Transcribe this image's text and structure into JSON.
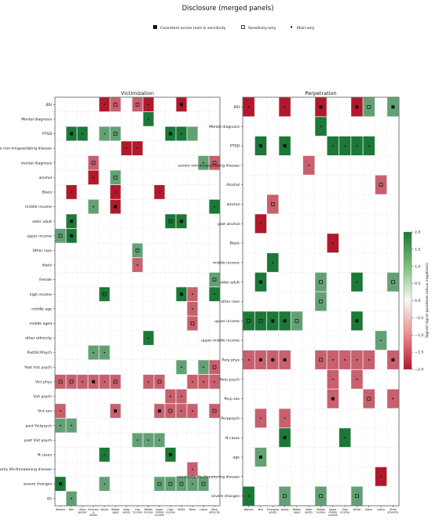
{
  "figure": {
    "title": "Disclosure (merged panels)",
    "legend": {
      "placement": "top-center",
      "items": [
        {
          "marker": "filled-square",
          "label": "Consistent across main & sensitivity"
        },
        {
          "marker": "open-square",
          "label": "Sensitivity-only"
        },
        {
          "marker": "dot",
          "label": "Main-only"
        }
      ]
    },
    "colorbar": {
      "label": "Signed signal (positives minus negatives)",
      "ticks": [
        "2.0",
        "1.5",
        "1.0",
        "0.5",
        "0.0",
        "−0.5",
        "−1.0",
        "−1.5",
        "−2.0"
      ],
      "range": [
        -2.0,
        2.0
      ],
      "colors": {
        "neg_strong": "#b2182b",
        "neutral": "#f7f7f7",
        "pos_strong": "#1b7837"
      }
    }
  },
  "chart_data": [
    {
      "type": "heatmap",
      "title": "Victimization",
      "xlim": [
        0,
        12
      ],
      "columns": [
        "Women",
        "Men",
        "Other gender",
        "Emergin g adults",
        "Adults",
        "Middle aged",
        "Older adults",
        "Low income",
        "Middle income",
        "Upper middle income",
        "High income",
        "White",
        "Black",
        "Latino",
        "Other ethnicity"
      ],
      "rows": [
        "BSI",
        "Mental diagnosis",
        "PTSD",
        "severe non-incapacitating disease",
        "mental diagnosis",
        "alcohol",
        "Black",
        "middle income",
        "older adult",
        "upper income",
        "Other race",
        "black",
        "female",
        "high income",
        "middle age",
        "middle aged",
        "other ethnicity",
        "PastVictPsych",
        "Past Vict psych",
        "Vict phys",
        "Vict psych",
        "Vict sex",
        "past Victpsych",
        "past Vict psych",
        "N cases",
        "constantly life-threatening disease",
        "severe changes",
        "65"
      ],
      "cells": [
        {
          "r": 0,
          "c": 4,
          "v": -2,
          "m": "dot"
        },
        {
          "r": 0,
          "c": 5,
          "v": -1,
          "m": "open"
        },
        {
          "r": 0,
          "c": 7,
          "v": -1,
          "m": "open"
        },
        {
          "r": 0,
          "c": 8,
          "v": -2,
          "m": "dot"
        },
        {
          "r": 0,
          "c": 11,
          "v": -2,
          "m": "filled"
        },
        {
          "r": 1,
          "c": 8,
          "v": 2,
          "m": "dot"
        },
        {
          "r": 2,
          "c": 1,
          "v": 2,
          "m": "filled"
        },
        {
          "r": 2,
          "c": 2,
          "v": 2,
          "m": "dot"
        },
        {
          "r": 2,
          "c": 4,
          "v": 1,
          "m": "dot"
        },
        {
          "r": 2,
          "c": 5,
          "v": 1,
          "m": "open"
        },
        {
          "r": 2,
          "c": 10,
          "v": 2,
          "m": "filled"
        },
        {
          "r": 2,
          "c": 11,
          "v": 2,
          "m": "dot"
        },
        {
          "r": 2,
          "c": 12,
          "v": 1,
          "m": "none"
        },
        {
          "r": 3,
          "c": 6,
          "v": -2,
          "m": "dot"
        },
        {
          "r": 3,
          "c": 7,
          "v": -2,
          "m": "dot"
        },
        {
          "r": 4,
          "c": 3,
          "v": -1,
          "m": "open"
        },
        {
          "r": 4,
          "c": 13,
          "v": 1,
          "m": "dot"
        },
        {
          "r": 4,
          "c": 14,
          "v": -1,
          "m": "open"
        },
        {
          "r": 5,
          "c": 3,
          "v": -2,
          "m": "dot"
        },
        {
          "r": 5,
          "c": 5,
          "v": 1,
          "m": "open"
        },
        {
          "r": 6,
          "c": 1,
          "v": -2,
          "m": "dot"
        },
        {
          "r": 6,
          "c": 5,
          "v": -2,
          "m": "dot"
        },
        {
          "r": 6,
          "c": 9,
          "v": -2,
          "m": "dot"
        },
        {
          "r": 7,
          "c": 3,
          "v": 1,
          "m": "dot"
        },
        {
          "r": 7,
          "c": 5,
          "v": -2,
          "m": "filled"
        },
        {
          "r": 7,
          "c": 14,
          "v": 2,
          "m": "dot"
        },
        {
          "r": 8,
          "c": 1,
          "v": 2,
          "m": "filled"
        },
        {
          "r": 8,
          "c": 10,
          "v": 2,
          "m": "open"
        },
        {
          "r": 8,
          "c": 11,
          "v": 2,
          "m": "filled"
        },
        {
          "r": 9,
          "c": 0,
          "v": 1,
          "m": "open"
        },
        {
          "r": 9,
          "c": 1,
          "v": 2,
          "m": "filled"
        },
        {
          "r": 10,
          "c": 7,
          "v": 1,
          "m": "open"
        },
        {
          "r": 11,
          "c": 7,
          "v": -1,
          "m": "dot"
        },
        {
          "r": 12,
          "c": 14,
          "v": 1,
          "m": "open"
        },
        {
          "r": 13,
          "c": 4,
          "v": 2,
          "m": "open"
        },
        {
          "r": 13,
          "c": 11,
          "v": 2,
          "m": "filled"
        },
        {
          "r": 13,
          "c": 12,
          "v": -1,
          "m": "dot"
        },
        {
          "r": 13,
          "c": 14,
          "v": 2,
          "m": "dot"
        },
        {
          "r": 14,
          "c": 12,
          "v": -1,
          "m": "dot"
        },
        {
          "r": 15,
          "c": 12,
          "v": -1,
          "m": "open"
        },
        {
          "r": 16,
          "c": 8,
          "v": 2,
          "m": "dot"
        },
        {
          "r": 17,
          "c": 3,
          "v": 1,
          "m": "dot"
        },
        {
          "r": 17,
          "c": 4,
          "v": 1,
          "m": "dot"
        },
        {
          "r": 18,
          "c": 11,
          "v": 1,
          "m": "dot"
        },
        {
          "r": 18,
          "c": 13,
          "v": 1,
          "m": "dot"
        },
        {
          "r": 18,
          "c": 14,
          "v": -1,
          "m": "open"
        },
        {
          "r": 19,
          "c": 0,
          "v": -1,
          "m": "open"
        },
        {
          "r": 19,
          "c": 1,
          "v": -1,
          "m": "open"
        },
        {
          "r": 19,
          "c": 2,
          "v": -1,
          "m": "dot"
        },
        {
          "r": 19,
          "c": 3,
          "v": -1,
          "m": "filled"
        },
        {
          "r": 19,
          "c": 4,
          "v": -1,
          "m": "dot"
        },
        {
          "r": 19,
          "c": 5,
          "v": -1,
          "m": "open"
        },
        {
          "r": 19,
          "c": 8,
          "v": -1,
          "m": "dot"
        },
        {
          "r": 19,
          "c": 9,
          "v": -1,
          "m": "open"
        },
        {
          "r": 19,
          "c": 12,
          "v": -1,
          "m": "dot"
        },
        {
          "r": 19,
          "c": 13,
          "v": -1,
          "m": "dot"
        },
        {
          "r": 19,
          "c": 14,
          "v": -1,
          "m": "dot"
        },
        {
          "r": 20,
          "c": 10,
          "v": -1,
          "m": "dot"
        },
        {
          "r": 20,
          "c": 11,
          "v": -1,
          "m": "dot"
        },
        {
          "r": 21,
          "c": 0,
          "v": -1,
          "m": "dot"
        },
        {
          "r": 21,
          "c": 5,
          "v": -1,
          "m": "filled"
        },
        {
          "r": 21,
          "c": 9,
          "v": -1,
          "m": "filled"
        },
        {
          "r": 21,
          "c": 10,
          "v": -1,
          "m": "open"
        },
        {
          "r": 21,
          "c": 11,
          "v": -1,
          "m": "dot"
        },
        {
          "r": 21,
          "c": 12,
          "v": -1,
          "m": "dot"
        },
        {
          "r": 21,
          "c": 14,
          "v": -1,
          "m": "open"
        },
        {
          "r": 22,
          "c": 0,
          "v": 1,
          "m": "dot"
        },
        {
          "r": 22,
          "c": 1,
          "v": 1,
          "m": "dot"
        },
        {
          "r": 23,
          "c": 7,
          "v": 1,
          "m": "dot"
        },
        {
          "r": 23,
          "c": 8,
          "v": 1,
          "m": "dot"
        },
        {
          "r": 23,
          "c": 9,
          "v": 1,
          "m": "dot"
        },
        {
          "r": 24,
          "c": 4,
          "v": 2,
          "m": "dot"
        },
        {
          "r": 24,
          "c": 10,
          "v": 2,
          "m": "filled"
        },
        {
          "r": 25,
          "c": 12,
          "v": -1,
          "m": "dot"
        },
        {
          "r": 26,
          "c": 0,
          "v": 2,
          "m": "filled"
        },
        {
          "r": 26,
          "c": 4,
          "v": 1,
          "m": "dot"
        },
        {
          "r": 26,
          "c": 9,
          "v": 1,
          "m": "open"
        },
        {
          "r": 26,
          "c": 10,
          "v": 1,
          "m": "open"
        },
        {
          "r": 26,
          "c": 11,
          "v": 1,
          "m": "open"
        },
        {
          "r": 26,
          "c": 12,
          "v": 1,
          "m": "dot"
        },
        {
          "r": 26,
          "c": 13,
          "v": 1,
          "m": "open"
        },
        {
          "r": 27,
          "c": 1,
          "v": 1,
          "m": "dot"
        }
      ]
    },
    {
      "type": "heatmap",
      "title": "Perpetration",
      "columns": [
        "Women",
        "Men",
        "Emerging adults",
        "Adults",
        "Middle aged",
        "Older adults",
        "Middle income",
        "Upper middle income",
        "High income",
        "White",
        "Black",
        "Latino",
        "Other ethnicity"
      ],
      "rows": [
        "BSI",
        "Mental diagnosis",
        "PTSD",
        "severe non-incapacitating disease",
        "Alcohol",
        "alcohol",
        "past alcohol",
        "Black",
        "middle income",
        "older adult",
        "other race",
        "upper income",
        "upper middle income",
        "Perp phys",
        "Perp psych",
        "Perp sex",
        "Perppsych",
        "N cases",
        "age",
        "constantly life-threatening disease",
        "severe changes"
      ],
      "cells": [
        {
          "r": 0,
          "c": 0,
          "v": -2,
          "m": "dot"
        },
        {
          "r": 0,
          "c": 3,
          "v": -2,
          "m": "dot"
        },
        {
          "r": 0,
          "c": 6,
          "v": -2,
          "m": "filled"
        },
        {
          "r": 0,
          "c": 9,
          "v": -2,
          "m": "filled"
        },
        {
          "r": 0,
          "c": 10,
          "v": 1,
          "m": "open"
        },
        {
          "r": 0,
          "c": 12,
          "v": 1,
          "m": "filled"
        },
        {
          "r": 1,
          "c": 6,
          "v": 2,
          "m": "dot"
        },
        {
          "r": 2,
          "c": 1,
          "v": 2,
          "m": "filled"
        },
        {
          "r": 2,
          "c": 3,
          "v": 2,
          "m": "filled"
        },
        {
          "r": 2,
          "c": 7,
          "v": 2,
          "m": "dot"
        },
        {
          "r": 2,
          "c": 8,
          "v": 2,
          "m": "dot"
        },
        {
          "r": 2,
          "c": 9,
          "v": 2,
          "m": "dot"
        },
        {
          "r": 2,
          "c": 10,
          "v": 2,
          "m": "dot"
        },
        {
          "r": 3,
          "c": 5,
          "v": -1,
          "m": "dot"
        },
        {
          "r": 4,
          "c": 11,
          "v": -1,
          "m": "open"
        },
        {
          "r": 5,
          "c": 2,
          "v": -1,
          "m": "open"
        },
        {
          "r": 6,
          "c": 1,
          "v": -2,
          "m": "dot"
        },
        {
          "r": 7,
          "c": 7,
          "v": -2,
          "m": "dot"
        },
        {
          "r": 8,
          "c": 2,
          "v": 2,
          "m": "dot"
        },
        {
          "r": 9,
          "c": 1,
          "v": 2,
          "m": "filled"
        },
        {
          "r": 9,
          "c": 6,
          "v": 1,
          "m": "open"
        },
        {
          "r": 9,
          "c": 9,
          "v": 2,
          "m": "dot"
        },
        {
          "r": 9,
          "c": 12,
          "v": 1,
          "m": "open"
        },
        {
          "r": 10,
          "c": 6,
          "v": 1,
          "m": "open"
        },
        {
          "r": 11,
          "c": 0,
          "v": 2,
          "m": "open"
        },
        {
          "r": 11,
          "c": 1,
          "v": 2,
          "m": "open"
        },
        {
          "r": 11,
          "c": 2,
          "v": 2,
          "m": "filled"
        },
        {
          "r": 11,
          "c": 3,
          "v": 2,
          "m": "filled"
        },
        {
          "r": 11,
          "c": 4,
          "v": 1,
          "m": "open"
        },
        {
          "r": 11,
          "c": 9,
          "v": 2,
          "m": "filled"
        },
        {
          "r": 12,
          "c": 11,
          "v": 1,
          "m": "dot"
        },
        {
          "r": 13,
          "c": 0,
          "v": -1,
          "m": "dot"
        },
        {
          "r": 13,
          "c": 1,
          "v": -1,
          "m": "filled"
        },
        {
          "r": 13,
          "c": 2,
          "v": -1,
          "m": "filled"
        },
        {
          "r": 13,
          "c": 3,
          "v": -1,
          "m": "filled"
        },
        {
          "r": 13,
          "c": 6,
          "v": -1,
          "m": "open"
        },
        {
          "r": 13,
          "c": 7,
          "v": -1,
          "m": "dot"
        },
        {
          "r": 13,
          "c": 8,
          "v": -1,
          "m": "dot"
        },
        {
          "r": 13,
          "c": 9,
          "v": -1,
          "m": "dot"
        },
        {
          "r": 13,
          "c": 10,
          "v": -1,
          "m": "dot"
        },
        {
          "r": 13,
          "c": 12,
          "v": -1,
          "m": "filled"
        },
        {
          "r": 14,
          "c": 7,
          "v": -1,
          "m": "dot"
        },
        {
          "r": 14,
          "c": 9,
          "v": -1,
          "m": "dot"
        },
        {
          "r": 15,
          "c": 7,
          "v": -1,
          "m": "filled"
        },
        {
          "r": 15,
          "c": 10,
          "v": -1,
          "m": "open"
        },
        {
          "r": 15,
          "c": 12,
          "v": -1,
          "m": "dot"
        },
        {
          "r": 16,
          "c": 1,
          "v": -1,
          "m": "dot"
        },
        {
          "r": 16,
          "c": 3,
          "v": -1,
          "m": "dot"
        },
        {
          "r": 17,
          "c": 3,
          "v": 2,
          "m": "filled"
        },
        {
          "r": 17,
          "c": 8,
          "v": 2,
          "m": "dot"
        },
        {
          "r": 18,
          "c": 1,
          "v": 1,
          "m": "filled"
        },
        {
          "r": 19,
          "c": 11,
          "v": -2,
          "m": "dot"
        },
        {
          "r": 20,
          "c": 0,
          "v": 2,
          "m": "dot"
        },
        {
          "r": 20,
          "c": 3,
          "v": 1,
          "m": "open"
        },
        {
          "r": 20,
          "c": 6,
          "v": 1,
          "m": "open"
        },
        {
          "r": 20,
          "c": 9,
          "v": 1,
          "m": "open"
        }
      ]
    }
  ]
}
